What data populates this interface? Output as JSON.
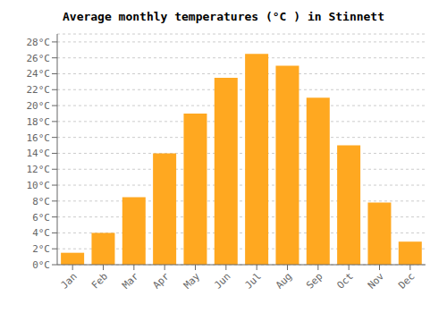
{
  "chart_data": {
    "type": "bar",
    "title": "Average monthly temperatures (°C ) in Stinnett",
    "categories": [
      "Jan",
      "Feb",
      "Mar",
      "Apr",
      "May",
      "Jun",
      "Jul",
      "Aug",
      "Sep",
      "Oct",
      "Nov",
      "Dec"
    ],
    "values": [
      1.5,
      4.0,
      8.5,
      14.0,
      19.0,
      23.5,
      26.5,
      25.0,
      21.0,
      15.0,
      7.8,
      2.9
    ],
    "color": "#FFA820",
    "ylim": [
      0,
      29
    ],
    "yticks": [
      {
        "value": 0,
        "label": "0°C"
      },
      {
        "value": 2,
        "label": "2°C"
      },
      {
        "value": 4,
        "label": "4°C"
      },
      {
        "value": 6,
        "label": "6°C"
      },
      {
        "value": 8,
        "label": "8°C"
      },
      {
        "value": 10,
        "label": "10°C"
      },
      {
        "value": 12,
        "label": "12°C"
      },
      {
        "value": 14,
        "label": "14°C"
      },
      {
        "value": 16,
        "label": "16°C"
      },
      {
        "value": 18,
        "label": "18°C"
      },
      {
        "value": 20,
        "label": "20°C"
      },
      {
        "value": 22,
        "label": "22°C"
      },
      {
        "value": 24,
        "label": "24°C"
      },
      {
        "value": 26,
        "label": "26°C"
      },
      {
        "value": 28,
        "label": "28°C"
      }
    ],
    "grid": true
  }
}
